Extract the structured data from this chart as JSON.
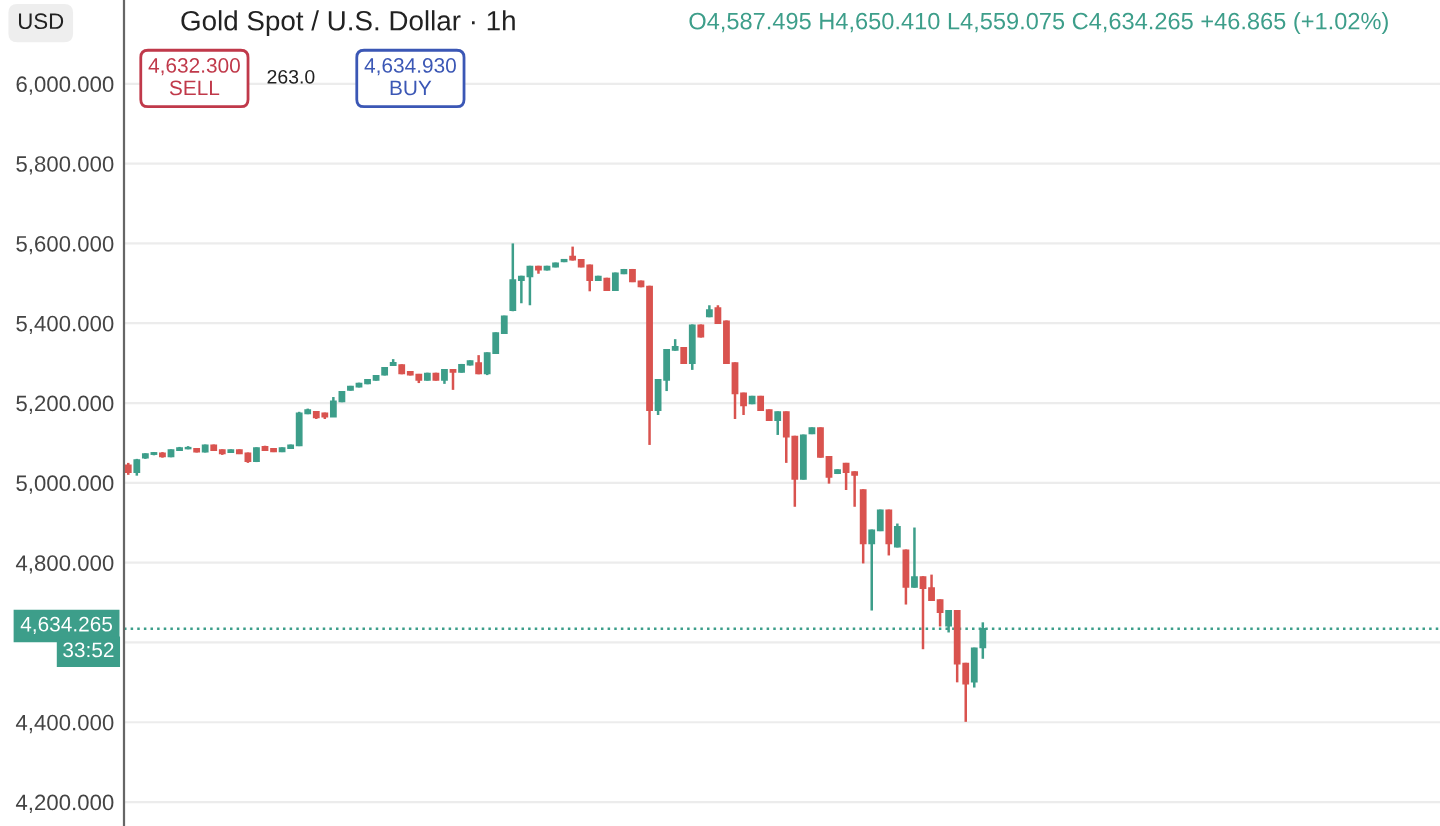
{
  "chart_data": {
    "type": "candlestick",
    "title": "Gold Spot / U.S. Dollar · 1h",
    "annotations": [
      "USD",
      "O4,587.495 H4,650.410 L4,559.075 C4,634.265 +46.865 (+1.02%)",
      "4,632.300\nSELL",
      "263.0",
      "4,634.930\nBUY",
      "33:52"
    ],
    "categories": [
      null,
      null,
      null,
      null,
      null,
      null,
      null,
      null,
      null,
      null,
      null,
      null,
      null,
      null,
      null,
      null,
      null,
      null,
      null,
      null,
      null,
      null,
      null,
      null,
      null,
      null,
      null,
      null,
      null,
      null,
      null,
      null,
      null,
      null,
      null,
      null,
      null,
      null,
      null,
      null,
      null,
      null,
      null,
      null,
      null,
      null,
      null,
      null,
      null,
      null,
      null,
      null,
      null,
      null,
      null,
      null,
      null,
      null,
      null,
      null,
      null,
      null,
      null,
      null,
      null,
      null,
      null,
      null,
      null,
      null,
      null,
      null,
      null,
      null,
      null,
      null,
      null,
      null,
      null,
      null,
      null,
      null,
      null,
      null,
      null,
      null,
      null,
      null,
      null,
      null,
      null,
      null,
      null,
      null,
      null,
      null,
      null,
      null,
      null,
      null,
      null,
      null,
      null,
      null,
      null,
      null,
      null,
      null,
      null,
      null,
      null,
      null,
      null,
      null,
      null,
      null,
      null,
      null,
      null,
      null,
      null,
      null,
      null,
      null,
      null,
      null,
      null,
      null,
      null,
      null,
      null,
      null,
      null,
      null,
      null,
      null,
      null,
      null,
      null,
      null,
      null,
      null,
      null,
      null,
      null,
      null,
      null,
      null,
      null,
      null,
      null,
      null,
      null,
      null
    ],
    "ohlc": [
      [
        5044,
        5050,
        5020,
        5027
      ],
      [
        5027,
        5060,
        5018,
        5057
      ],
      [
        5063,
        5074,
        5060,
        5072
      ],
      [
        5072,
        5077,
        5069,
        5075
      ],
      [
        5074,
        5077,
        5063,
        5066
      ],
      [
        5066,
        5084,
        5064,
        5082
      ],
      [
        5082,
        5090,
        5080,
        5087
      ],
      [
        5086,
        5092,
        5084,
        5088
      ],
      [
        5085,
        5087,
        5076,
        5078
      ],
      [
        5078,
        5096,
        5076,
        5094
      ],
      [
        5094,
        5096,
        5080,
        5082
      ],
      [
        5082,
        5084,
        5070,
        5074
      ],
      [
        5077,
        5084,
        5075,
        5082
      ],
      [
        5082,
        5084,
        5072,
        5074
      ],
      [
        5074,
        5076,
        5050,
        5054
      ],
      [
        5054,
        5089,
        5052,
        5087
      ],
      [
        5090,
        5093,
        5080,
        5082
      ],
      [
        5085,
        5087,
        5077,
        5079
      ],
      [
        5079,
        5089,
        5077,
        5087
      ],
      [
        5087,
        5096,
        5085,
        5094
      ],
      [
        5094,
        5178,
        5092,
        5174
      ],
      [
        5174,
        5186,
        5172,
        5182
      ],
      [
        5178,
        5180,
        5160,
        5164
      ],
      [
        5174,
        5176,
        5160,
        5166
      ],
      [
        5166,
        5215,
        5165,
        5204
      ],
      [
        5204,
        5230,
        5202,
        5228
      ],
      [
        5233,
        5243,
        5231,
        5241
      ],
      [
        5241,
        5251,
        5239,
        5249
      ],
      [
        5249,
        5260,
        5247,
        5258
      ],
      [
        5258,
        5270,
        5256,
        5268
      ],
      [
        5271,
        5290,
        5269,
        5288
      ],
      [
        5295,
        5310,
        5293,
        5301
      ],
      [
        5295,
        5297,
        5272,
        5274
      ],
      [
        5278,
        5280,
        5269,
        5271
      ],
      [
        5271,
        5273,
        5250,
        5258
      ],
      [
        5258,
        5276,
        5256,
        5274
      ],
      [
        5274,
        5276,
        5256,
        5258
      ],
      [
        5258,
        5285,
        5248,
        5283
      ],
      [
        5283,
        5285,
        5233,
        5278
      ],
      [
        5278,
        5298,
        5276,
        5296
      ],
      [
        5296,
        5307,
        5294,
        5305
      ],
      [
        5300,
        5320,
        5272,
        5274
      ],
      [
        5274,
        5327,
        5270,
        5325
      ],
      [
        5325,
        5377,
        5323,
        5375
      ],
      [
        5375,
        5419,
        5373,
        5417
      ],
      [
        5433,
        5600,
        5430,
        5508
      ],
      [
        5508,
        5519,
        5450,
        5517
      ],
      [
        5517,
        5544,
        5445,
        5542
      ],
      [
        5542,
        5544,
        5524,
        5534
      ],
      [
        5534,
        5544,
        5532,
        5542
      ],
      [
        5542,
        5552,
        5540,
        5550
      ],
      [
        5555,
        5561,
        5553,
        5559
      ],
      [
        5567,
        5592,
        5557,
        5559
      ],
      [
        5559,
        5561,
        5540,
        5542
      ],
      [
        5545,
        5547,
        5480,
        5508
      ],
      [
        5508,
        5519,
        5506,
        5517
      ],
      [
        5512,
        5514,
        5481,
        5483
      ],
      [
        5483,
        5527,
        5481,
        5525
      ],
      [
        5525,
        5536,
        5523,
        5534
      ],
      [
        5534,
        5536,
        5503,
        5505
      ],
      [
        5505,
        5507,
        5490,
        5492
      ],
      [
        5492,
        5494,
        5095,
        5182
      ],
      [
        5182,
        5260,
        5170,
        5258
      ],
      [
        5258,
        5335,
        5230,
        5333
      ],
      [
        5333,
        5360,
        5331,
        5341
      ],
      [
        5338,
        5340,
        5298,
        5300
      ],
      [
        5300,
        5397,
        5283,
        5395
      ],
      [
        5395,
        5397,
        5364,
        5366
      ],
      [
        5417,
        5445,
        5415,
        5433
      ],
      [
        5438,
        5445,
        5398,
        5400
      ],
      [
        5405,
        5407,
        5298,
        5300
      ],
      [
        5300,
        5302,
        5160,
        5224
      ],
      [
        5224,
        5226,
        5170,
        5194
      ],
      [
        5199,
        5218,
        5197,
        5216
      ],
      [
        5216,
        5218,
        5180,
        5182
      ],
      [
        5182,
        5184,
        5155,
        5157
      ],
      [
        5157,
        5179,
        5120,
        5177
      ],
      [
        5177,
        5179,
        5050,
        5116
      ],
      [
        5116,
        5118,
        4940,
        5010
      ],
      [
        5010,
        5121,
        5008,
        5119
      ],
      [
        5124,
        5139,
        5122,
        5137
      ],
      [
        5137,
        5139,
        5063,
        5065
      ],
      [
        5065,
        5067,
        4998,
        5015
      ],
      [
        5024,
        5034,
        5022,
        5032
      ],
      [
        5048,
        5050,
        4982,
        5027
      ],
      [
        5027,
        5029,
        4940,
        5020
      ],
      [
        4982,
        4984,
        4798,
        4848
      ],
      [
        4848,
        4883,
        4680,
        4881
      ],
      [
        4881,
        4933,
        4879,
        4931
      ],
      [
        4931,
        4933,
        4818,
        4848
      ],
      [
        4840,
        4898,
        4838,
        4890
      ],
      [
        4831,
        4833,
        4695,
        4739
      ],
      [
        4739,
        4888,
        4737,
        4764
      ],
      [
        4764,
        4766,
        4583,
        4736
      ],
      [
        4736,
        4770,
        4704,
        4706
      ],
      [
        4706,
        4708,
        4640,
        4676
      ],
      [
        4642,
        4681,
        4625,
        4679
      ],
      [
        4679,
        4681,
        4500,
        4547
      ],
      [
        4547,
        4549,
        4401,
        4497
      ],
      [
        4502,
        4587,
        4487,
        4585
      ],
      [
        4587.495,
        4650.41,
        4559.075,
        4634.265
      ],
      null,
      null,
      null,
      null,
      null,
      null,
      null,
      null,
      null,
      null,
      null,
      null,
      null,
      null,
      null,
      null,
      null,
      null,
      null,
      null,
      null,
      null,
      null,
      null,
      null,
      null,
      null,
      null,
      null,
      null,
      null,
      null,
      null,
      null,
      null,
      null,
      null,
      null,
      null,
      null,
      null,
      null,
      null,
      null,
      null,
      null,
      null,
      null,
      null,
      null,
      null,
      null,
      null
    ],
    "colors": [
      "#d9534f",
      "#3d9e8a",
      "#3d9e8a",
      "#3d9e8a",
      "#d9534f",
      "#3d9e8a",
      "#3d9e8a",
      "#3d9e8a",
      "#d9534f",
      "#3d9e8a",
      "#d9534f",
      "#d9534f",
      "#3d9e8a",
      "#d9534f",
      "#d9534f",
      "#3d9e8a",
      "#d9534f",
      "#d9534f",
      "#3d9e8a",
      "#3d9e8a",
      "#3d9e8a",
      "#3d9e8a",
      "#d9534f",
      "#d9534f",
      "#3d9e8a",
      "#3d9e8a",
      "#3d9e8a",
      "#3d9e8a",
      "#3d9e8a",
      "#3d9e8a",
      "#3d9e8a",
      "#3d9e8a",
      "#d9534f",
      "#d9534f",
      "#d9534f",
      "#3d9e8a",
      "#d9534f",
      "#3d9e8a",
      "#d9534f",
      "#3d9e8a",
      "#3d9e8a",
      "#d9534f",
      "#3d9e8a",
      "#3d9e8a",
      "#3d9e8a",
      "#3d9e8a",
      "#3d9e8a",
      "#3d9e8a",
      "#d9534f",
      "#3d9e8a",
      "#3d9e8a",
      "#3d9e8a",
      "#d9534f",
      "#d9534f",
      "#d9534f",
      "#3d9e8a",
      "#d9534f",
      "#3d9e8a",
      "#3d9e8a",
      "#d9534f",
      "#d9534f",
      "#d9534f",
      "#3d9e8a",
      "#3d9e8a",
      "#3d9e8a",
      "#d9534f",
      "#3d9e8a",
      "#d9534f",
      "#3d9e8a",
      "#d9534f",
      "#d9534f",
      "#d9534f",
      "#d9534f",
      "#3d9e8a",
      "#d9534f",
      "#d9534f",
      "#3d9e8a",
      "#d9534f",
      "#d9534f",
      "#3d9e8a",
      "#3d9e8a",
      "#d9534f",
      "#d9534f",
      "#3d9e8a",
      "#d9534f",
      "#d9534f",
      "#d9534f",
      "#3d9e8a",
      "#3d9e8a",
      "#d9534f",
      "#3d9e8a",
      "#d9534f",
      "#3d9e8a",
      "#d9534f",
      "#d9534f",
      "#d9534f",
      "#3d9e8a",
      "#d9534f",
      "#d9534f",
      "#3d9e8a",
      "#3d9e8a",
      null,
      null,
      null,
      null,
      null,
      null,
      null,
      null,
      null,
      null,
      null,
      null,
      null,
      null,
      null,
      null,
      null,
      null,
      null,
      null,
      null,
      null,
      null,
      null,
      null,
      null,
      null,
      null,
      null,
      null,
      null,
      null,
      null,
      null,
      null,
      null,
      null,
      null,
      null,
      null,
      null,
      null,
      null,
      null,
      null,
      null,
      null,
      null,
      null,
      null,
      null,
      null,
      null
    ],
    "ylim": [
      4140,
      6210
    ],
    "yticks": [
      {
        "value": 4200,
        "label": "4,200.000"
      },
      {
        "value": 4400,
        "label": "4,400.000"
      },
      {
        "value": 4600,
        "label": null
      },
      {
        "value": 4800,
        "label": "4,800.000"
      },
      {
        "value": 5000,
        "label": "5,000.000"
      },
      {
        "value": 5200,
        "label": "5,200.000"
      },
      {
        "value": 5400,
        "label": "5,400.000"
      },
      {
        "value": 5600,
        "label": "5,600.000"
      },
      {
        "value": 5800,
        "label": "5,800.000"
      },
      {
        "value": 6000,
        "label": "6,000.000"
      }
    ],
    "ref_lines": [
      {
        "axis": "y",
        "value": 4634.265,
        "label": "4,634.265",
        "color": "#3d9e8a",
        "line_style": "dotted"
      }
    ],
    "grid": "y",
    "tick_labels": "y"
  }
}
